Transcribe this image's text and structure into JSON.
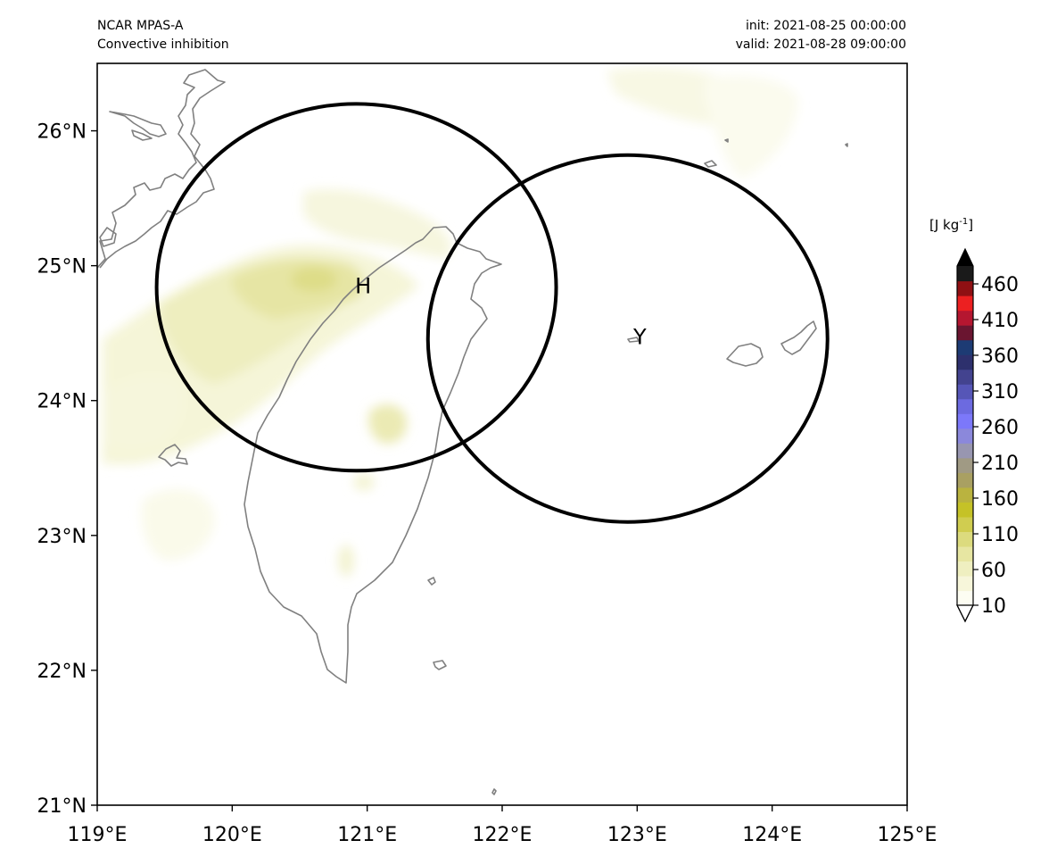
{
  "header": {
    "model": "NCAR MPAS-A",
    "field": "Convective inhibition",
    "init": "init: 2021-08-25 00:00:00",
    "valid": "valid: 2021-08-28 09:00:00"
  },
  "map": {
    "lon_range": [
      119,
      125
    ],
    "lat_range": [
      21,
      26.5
    ],
    "lon_ticks": [
      "119°E",
      "120°E",
      "121°E",
      "122°E",
      "123°E",
      "124°E",
      "125°E"
    ],
    "lat_ticks": [
      "21°N",
      "22°N",
      "23°N",
      "24°N",
      "25°N",
      "26°N"
    ],
    "markers": [
      {
        "label": "H",
        "lon": 120.97,
        "lat": 24.85
      },
      {
        "label": "Y",
        "lon": 123.02,
        "lat": 24.47
      }
    ],
    "circles": [
      {
        "name": "circle-H",
        "lon": 120.92,
        "lat": 24.84,
        "rx_deg": 1.48,
        "ry_deg": 1.36
      },
      {
        "name": "circle-Y",
        "lon": 122.93,
        "lat": 24.46,
        "rx_deg": 1.48,
        "ry_deg": 1.36
      }
    ],
    "coastline_color": "#808080"
  },
  "colorbar": {
    "unit_label": "[J kg",
    "unit_sup": "-1",
    "unit_close": "]",
    "ticks": [
      "10",
      "60",
      "110",
      "160",
      "210",
      "260",
      "310",
      "360",
      "410",
      "460"
    ],
    "range": [
      10,
      485
    ],
    "colors": [
      "#fdfdf2",
      "#f7f6da",
      "#efefc0",
      "#e7e6a2",
      "#dcdb7e",
      "#d0cd50",
      "#c5c227",
      "#bab33f",
      "#a9a062",
      "#a09a84",
      "#9896b0",
      "#8b88db",
      "#7c78fa",
      "#6c6ae0",
      "#5656b7",
      "#43438f",
      "#2d306d",
      "#1d3b74",
      "#6a1530",
      "#b51630",
      "#ec2021",
      "#8f1013",
      "#1a1a1a"
    ]
  }
}
